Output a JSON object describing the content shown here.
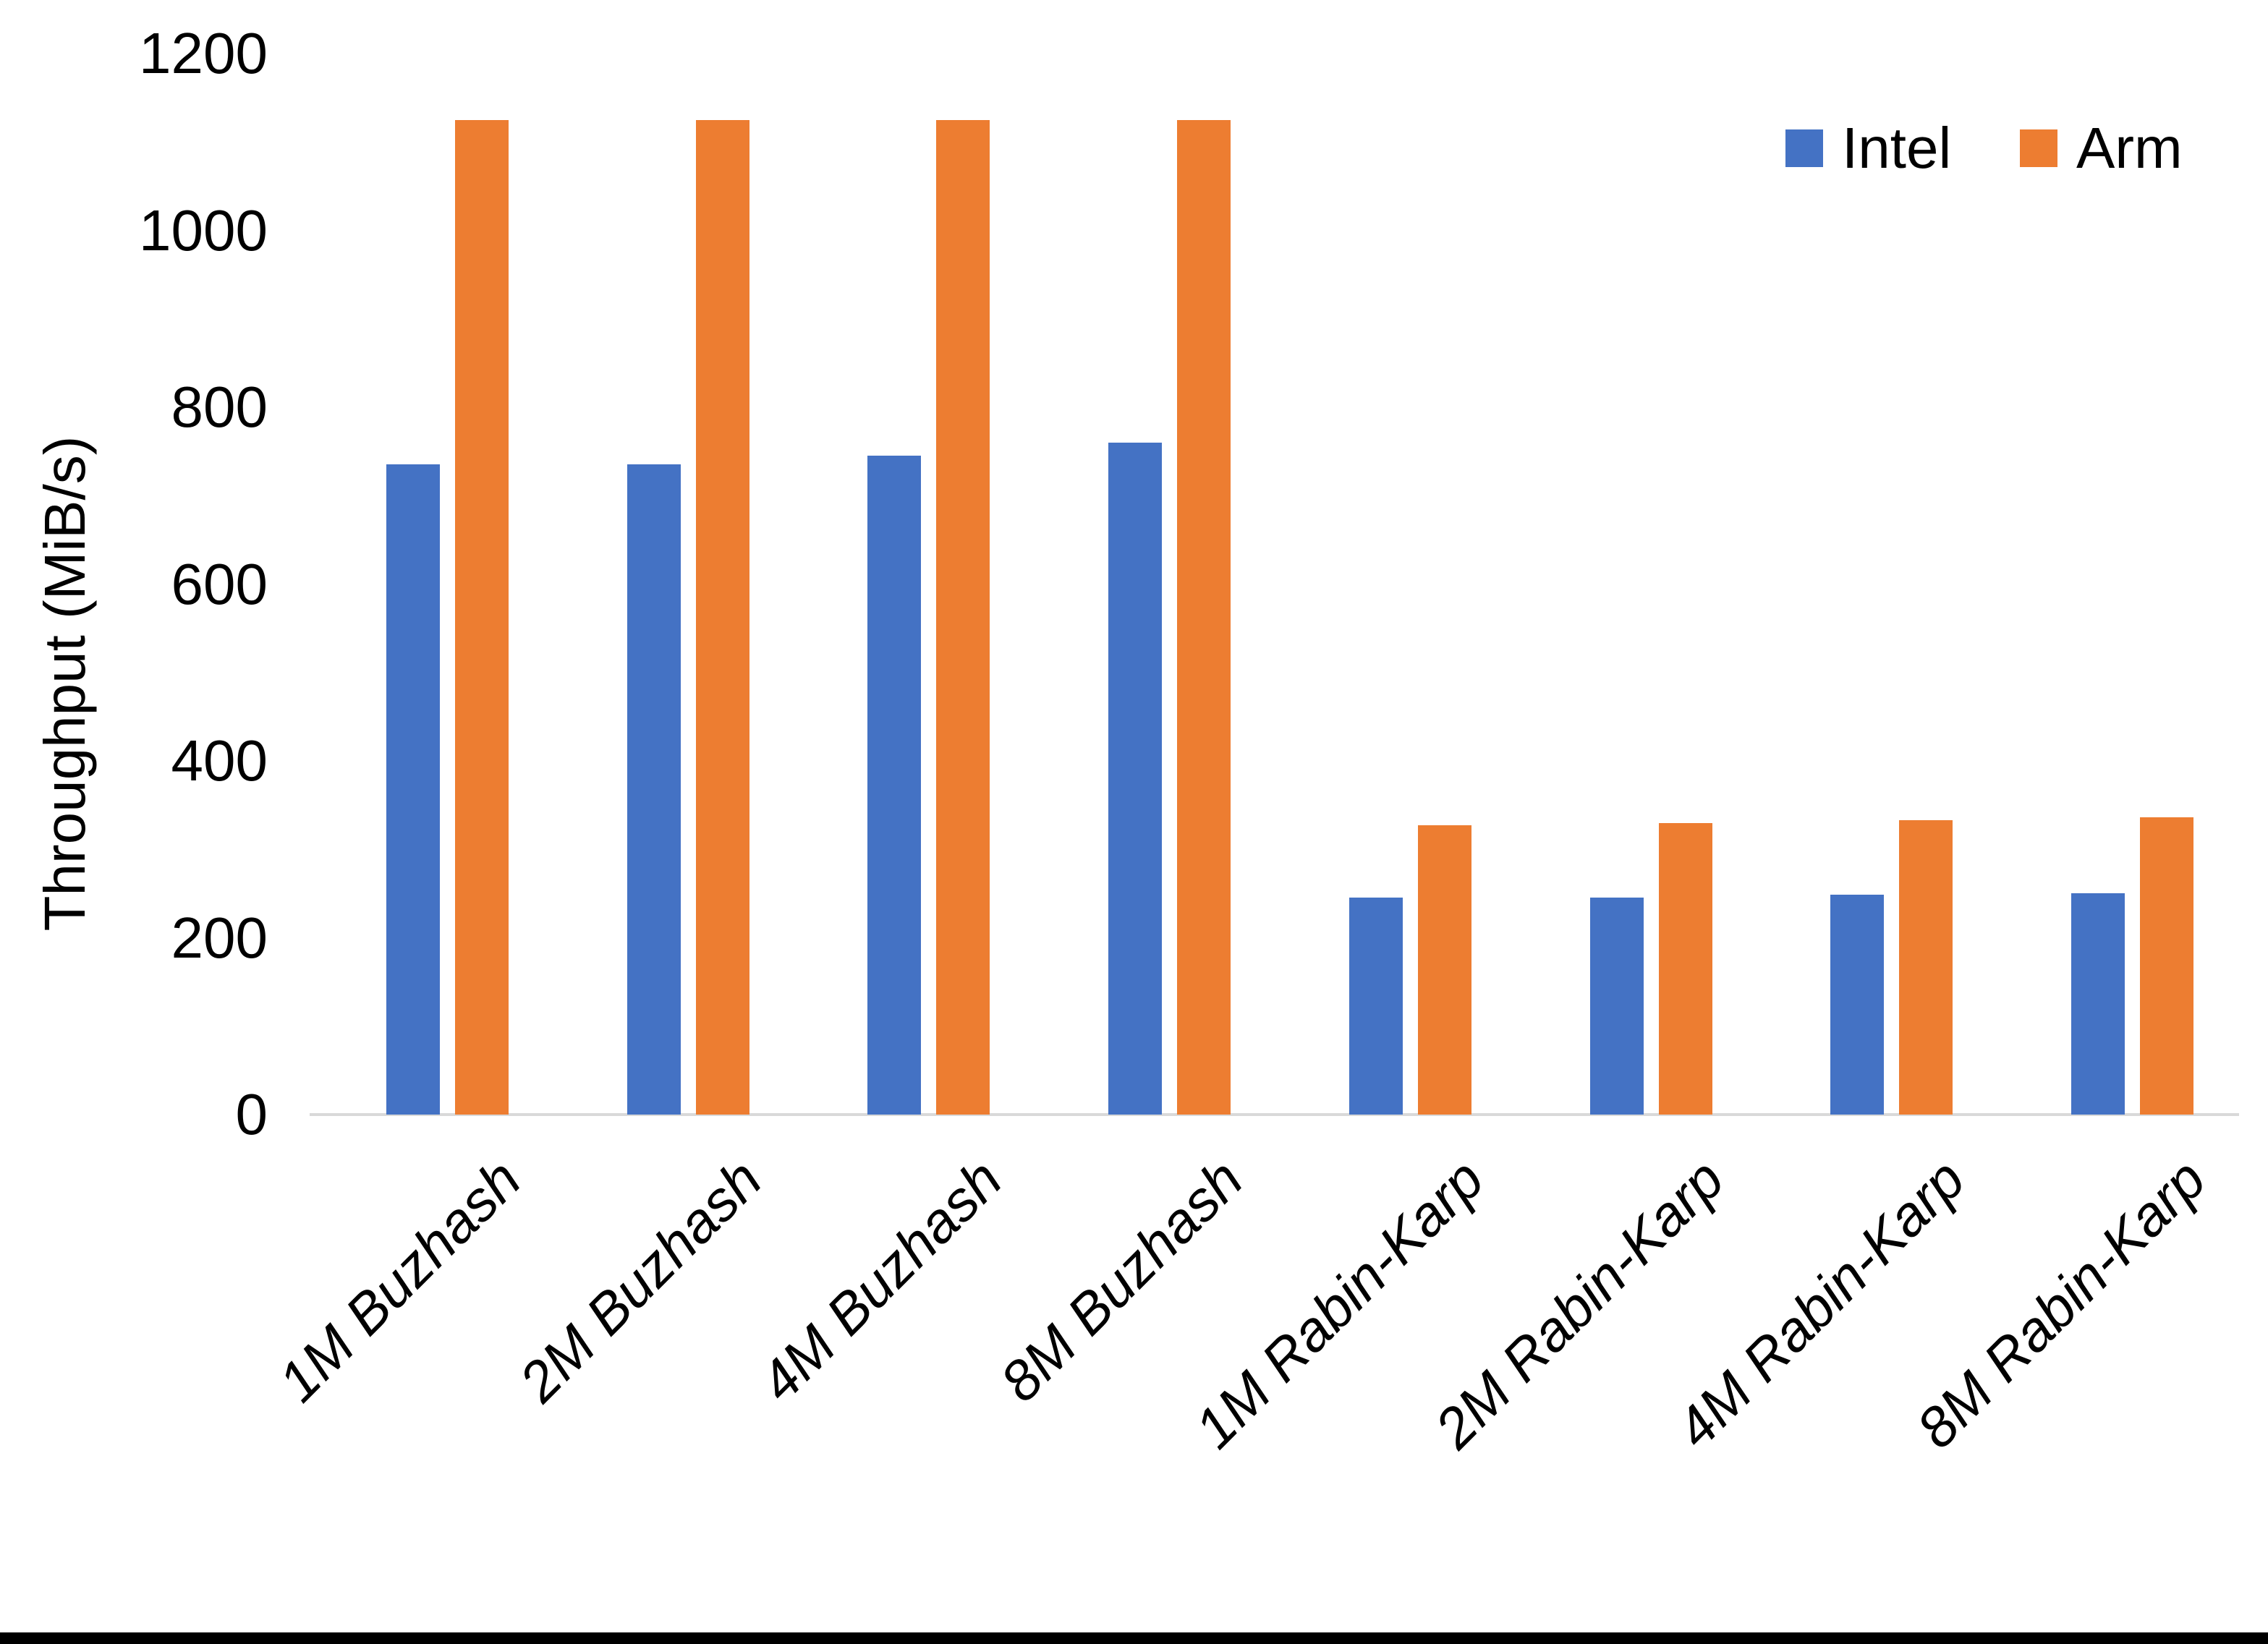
{
  "chart_data": {
    "type": "bar",
    "title": "",
    "xlabel": "",
    "ylabel": "Throughput (MiB/s)",
    "categories": [
      "1M Buzhash",
      "2M Buzhash",
      "4M Buzhash",
      "8M Buzhash",
      "1M Rabin-Karp",
      "2M Rabin-Karp",
      "4M Rabin-Karp",
      "8M Rabin-Karp"
    ],
    "series": [
      {
        "name": "Intel",
        "color": "#4472C4",
        "values": [
          735,
          735,
          745,
          760,
          245,
          245,
          249,
          250
        ]
      },
      {
        "name": "Arm",
        "color": "#ED7D31",
        "values": [
          1125,
          1125,
          1125,
          1125,
          327,
          330,
          333,
          336
        ]
      }
    ],
    "ylim": [
      0,
      1200
    ],
    "yticks": [
      0,
      200,
      400,
      600,
      800,
      1000,
      1200
    ],
    "grid": false,
    "legend_position": "top-right"
  },
  "colors": {
    "axis_line": "#D9D9D9",
    "text": "#000000",
    "background": "#FFFFFF",
    "bottom_border": "#000000"
  }
}
